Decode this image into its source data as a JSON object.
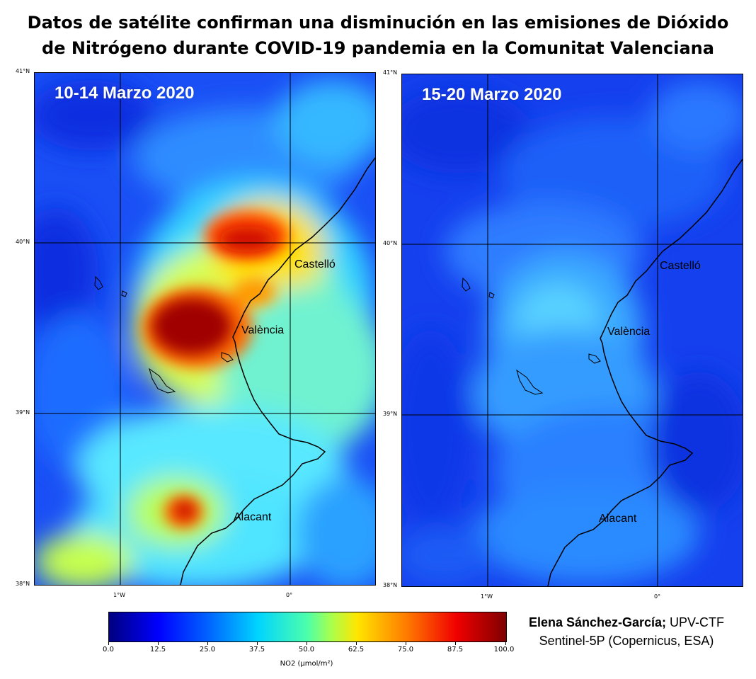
{
  "title": {
    "line1": "Datos de satélite confirman una disminución en las emisiones de Dióxido",
    "line2": "de Nitrógeno durante COVID-19 pandemia en la Comunitat Valenciana"
  },
  "panels": [
    {
      "label": "10-14 Marzo 2020",
      "period": "before"
    },
    {
      "label": "15-20 Marzo 2020",
      "period": "after"
    }
  ],
  "cities": [
    "Castelló",
    "València",
    "Alacant"
  ],
  "lat_ticks": [
    "41°N",
    "40°N",
    "39°N",
    "38°N"
  ],
  "lon_ticks": [
    "1°W",
    "0°"
  ],
  "colorbar": {
    "ticks": [
      "0.0",
      "12.5",
      "25.0",
      "37.5",
      "50.0",
      "62.5",
      "75.0",
      "87.5",
      "100.0"
    ],
    "label": "NO2 (μmol/m²)",
    "colors": [
      "#00007f",
      "#0000ff",
      "#0063ff",
      "#00d4ff",
      "#aaff4d",
      "#ffe600",
      "#ff7a00",
      "#f00000",
      "#7f0000"
    ]
  },
  "credit": {
    "author": "Elena Sánchez-García;",
    "org": " UPV-CTF",
    "source": "Sentinel-5P (Copernicus, ESA)"
  }
}
